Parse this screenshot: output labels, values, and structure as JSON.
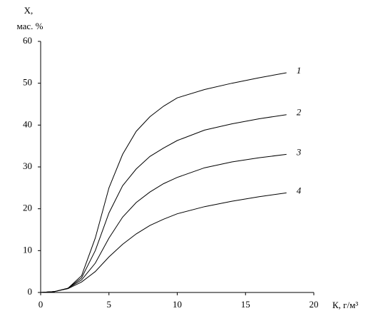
{
  "chart_data": {
    "type": "line",
    "y_label": [
      "X,",
      "мас. %"
    ],
    "x_label": "К, г/м³",
    "x": [
      0,
      1,
      2,
      3,
      4,
      5,
      6,
      7,
      8,
      9,
      10,
      12,
      14,
      16,
      18
    ],
    "series": [
      {
        "name": "1",
        "color": "#000000",
        "values": [
          0,
          0.2,
          1,
          4,
          13,
          25,
          33,
          38.5,
          42,
          44.5,
          46.5,
          48.5,
          50,
          51.3,
          52.5
        ]
      },
      {
        "name": "2",
        "color": "#000000",
        "values": [
          0,
          0.2,
          1,
          3.5,
          10,
          19,
          25.5,
          29.5,
          32.5,
          34.5,
          36.3,
          38.8,
          40.3,
          41.5,
          42.5
        ]
      },
      {
        "name": "3",
        "color": "#000000",
        "values": [
          0,
          0.2,
          1,
          3,
          7,
          13,
          18,
          21.5,
          24,
          26,
          27.5,
          29.8,
          31.2,
          32.2,
          33
        ]
      },
      {
        "name": "4",
        "color": "#000000",
        "values": [
          0,
          0.2,
          0.9,
          2.5,
          5,
          8.5,
          11.5,
          14,
          16,
          17.5,
          18.8,
          20.5,
          21.8,
          22.9,
          23.8
        ]
      }
    ],
    "xlim": [
      0,
      20
    ],
    "xticks": [
      0,
      5,
      10,
      15,
      20
    ],
    "ylim": [
      0,
      60
    ],
    "yticks": [
      0,
      10,
      20,
      30,
      40,
      50,
      60
    ],
    "grid": false
  }
}
